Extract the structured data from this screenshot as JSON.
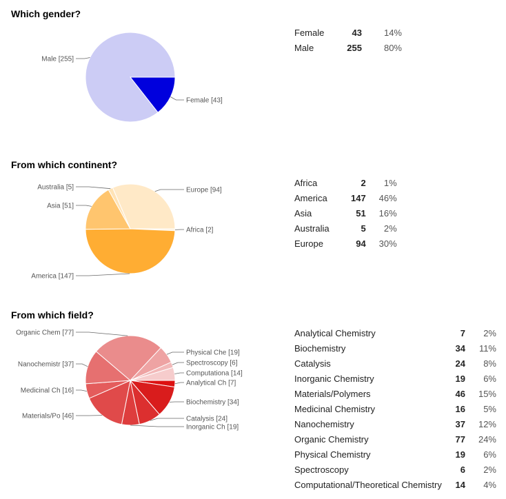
{
  "sections": [
    {
      "title": "Which gender?",
      "rows": [
        {
          "label": "Female",
          "count": "43",
          "pct": "14%"
        },
        {
          "label": "Male",
          "count": "255",
          "pct": "80%"
        }
      ]
    },
    {
      "title": "From which continent?",
      "rows": [
        {
          "label": "Africa",
          "count": "2",
          "pct": "1%"
        },
        {
          "label": "America",
          "count": "147",
          "pct": "46%"
        },
        {
          "label": "Asia",
          "count": "51",
          "pct": "16%"
        },
        {
          "label": "Australia",
          "count": "5",
          "pct": "2%"
        },
        {
          "label": "Europe",
          "count": "94",
          "pct": "30%"
        }
      ]
    },
    {
      "title": "From which field?",
      "rows": [
        {
          "label": "Analytical Chemistry",
          "count": "7",
          "pct": "2%"
        },
        {
          "label": "Biochemistry",
          "count": "34",
          "pct": "11%"
        },
        {
          "label": "Catalysis",
          "count": "24",
          "pct": "8%"
        },
        {
          "label": "Inorganic Chemistry",
          "count": "19",
          "pct": "6%"
        },
        {
          "label": "Materials/Polymers",
          "count": "46",
          "pct": "15%"
        },
        {
          "label": "Medicinal Chemistry",
          "count": "16",
          "pct": "5%"
        },
        {
          "label": "Nanochemistry",
          "count": "37",
          "pct": "12%"
        },
        {
          "label": "Organic Chemistry",
          "count": "77",
          "pct": "24%"
        },
        {
          "label": "Physical Chemistry",
          "count": "19",
          "pct": "6%"
        },
        {
          "label": "Spectroscopy",
          "count": "6",
          "pct": "2%"
        },
        {
          "label": "Computational/Theoretical Chemistry",
          "count": "14",
          "pct": "4%"
        }
      ]
    }
  ],
  "chart_data": [
    {
      "type": "pie",
      "title": "Which gender?",
      "slices": [
        {
          "name": "Female",
          "value": 43,
          "label": "Female [43]",
          "color": "#0000dd"
        },
        {
          "name": "Male",
          "value": 255,
          "label": "Male [255]",
          "color": "#ccccf5"
        }
      ]
    },
    {
      "type": "pie",
      "title": "From which continent?",
      "slices": [
        {
          "name": "Africa",
          "value": 2,
          "label": "Africa [2]",
          "color": "#fff3df"
        },
        {
          "name": "America",
          "value": 147,
          "label": "America [147]",
          "color": "#ffad33"
        },
        {
          "name": "Asia",
          "value": 51,
          "label": "Asia [51]",
          "color": "#ffc56e"
        },
        {
          "name": "Australia",
          "value": 5,
          "label": "Australia [5]",
          "color": "#ffe3b6"
        },
        {
          "name": "Europe",
          "value": 94,
          "label": "Europe [94]",
          "color": "#ffe9c7"
        }
      ]
    },
    {
      "type": "pie",
      "title": "From which field?",
      "slices": [
        {
          "name": "Analytical Chemistry",
          "value": 7,
          "label": "Analytical Ch [7]",
          "color": "#dd1111"
        },
        {
          "name": "Biochemistry",
          "value": 34,
          "label": "Biochemistry [34]",
          "color": "#d91c1c"
        },
        {
          "name": "Catalysis",
          "value": 24,
          "label": "Catalysis [24]",
          "color": "#dc2f2f"
        },
        {
          "name": "Inorganic Chemistry",
          "value": 19,
          "label": "Inorganic Ch [19]",
          "color": "#de3d3d"
        },
        {
          "name": "Materials/Polymers",
          "value": 46,
          "label": "Materials/Po [46]",
          "color": "#e04a4a"
        },
        {
          "name": "Medicinal Chemistry",
          "value": 16,
          "label": "Medicinal Ch [16]",
          "color": "#e45c5c"
        },
        {
          "name": "Nanochemistry",
          "value": 37,
          "label": "Nanochemistr [37]",
          "color": "#e67070"
        },
        {
          "name": "Organic Chemistry",
          "value": 77,
          "label": "Organic Chem [77]",
          "color": "#ea8c8c"
        },
        {
          "name": "Physical Chemistry",
          "value": 19,
          "label": "Physical Che [19]",
          "color": "#eea3a3"
        },
        {
          "name": "Spectroscopy",
          "value": 6,
          "label": "Spectroscopy [6]",
          "color": "#f2b8b8"
        },
        {
          "name": "Computational/Theoretical Chemistry",
          "value": 14,
          "label": "Computationa [14]",
          "color": "#f6cccc"
        }
      ]
    }
  ]
}
